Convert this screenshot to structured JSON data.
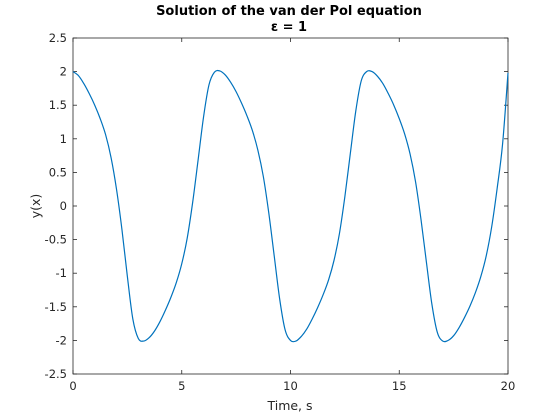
{
  "chart_data": {
    "type": "line",
    "title": "Solution of the van der Pol equation",
    "subtitle": "ε = 1",
    "xlabel": "Time, s",
    "ylabel": "y(x)",
    "xlim": [
      0,
      20
    ],
    "ylim": [
      -2.5,
      2.5
    ],
    "xticks": [
      0,
      5,
      10,
      15,
      20
    ],
    "xtick_labels": [
      "0",
      "5",
      "10",
      "15",
      "20"
    ],
    "yticks": [
      2.5,
      2,
      1.5,
      1,
      0.5,
      0,
      -0.5,
      -1,
      -1.5,
      -2,
      -2.5
    ],
    "ytick_labels": [
      "2.5",
      "2",
      "1.5",
      "1",
      "0.5",
      "0",
      "-0.5",
      "-1",
      "-1.5",
      "-2",
      "-2.5"
    ],
    "grid": false,
    "colors": {
      "line": "#0072bd",
      "axes": "#262626"
    },
    "series": [
      {
        "x": [
          0,
          0.25,
          0.5,
          0.75,
          1.0,
          1.25,
          1.5,
          1.75,
          2.0,
          2.25,
          2.5,
          2.75,
          3.0,
          3.25,
          3.5,
          3.75,
          4.0,
          4.25,
          4.5,
          4.75,
          5.0,
          5.25,
          5.5,
          5.75,
          6.0,
          6.25,
          6.5,
          6.75,
          7.0,
          7.25,
          7.5,
          7.75,
          8.0,
          8.25,
          8.5,
          8.75,
          9.0,
          9.25,
          9.5,
          9.75,
          10.0,
          10.25,
          10.5,
          10.75,
          11.0,
          11.25,
          11.5,
          11.75,
          12.0,
          12.25,
          12.5,
          12.75,
          13.0,
          13.25,
          13.5,
          13.75,
          14.0,
          14.25,
          14.5,
          14.75,
          15.0,
          15.25,
          15.5,
          15.75,
          16.0,
          16.25,
          16.5,
          16.75,
          17.0,
          17.25,
          17.5,
          17.75,
          18.0,
          18.25,
          18.5,
          18.75,
          19.0,
          19.25,
          19.5,
          19.75,
          20.0
        ],
        "y": [
          2.0,
          1.94,
          1.82,
          1.67,
          1.5,
          1.3,
          1.06,
          0.72,
          0.25,
          -0.35,
          -1.05,
          -1.68,
          -1.97,
          -2.01,
          -1.96,
          -1.86,
          -1.72,
          -1.55,
          -1.36,
          -1.14,
          -0.86,
          -0.48,
          0.05,
          0.68,
          1.32,
          1.8,
          1.99,
          2.01,
          1.95,
          1.84,
          1.7,
          1.53,
          1.34,
          1.12,
          0.83,
          0.44,
          -0.1,
          -0.74,
          -1.38,
          -1.84,
          -2.0,
          -2.01,
          -1.94,
          -1.83,
          -1.68,
          -1.51,
          -1.32,
          -1.1,
          -0.81,
          -0.41,
          0.14,
          0.78,
          1.41,
          1.86,
          2.0,
          2.0,
          1.93,
          1.82,
          1.67,
          1.5,
          1.3,
          1.07,
          0.77,
          0.36,
          -0.2,
          -0.84,
          -1.46,
          -1.88,
          -2.01,
          -2.0,
          -1.93,
          -1.81,
          -1.66,
          -1.49,
          -1.29,
          -1.05,
          -0.74,
          -0.31,
          0.26,
          0.92,
          1.98
        ]
      }
    ]
  }
}
